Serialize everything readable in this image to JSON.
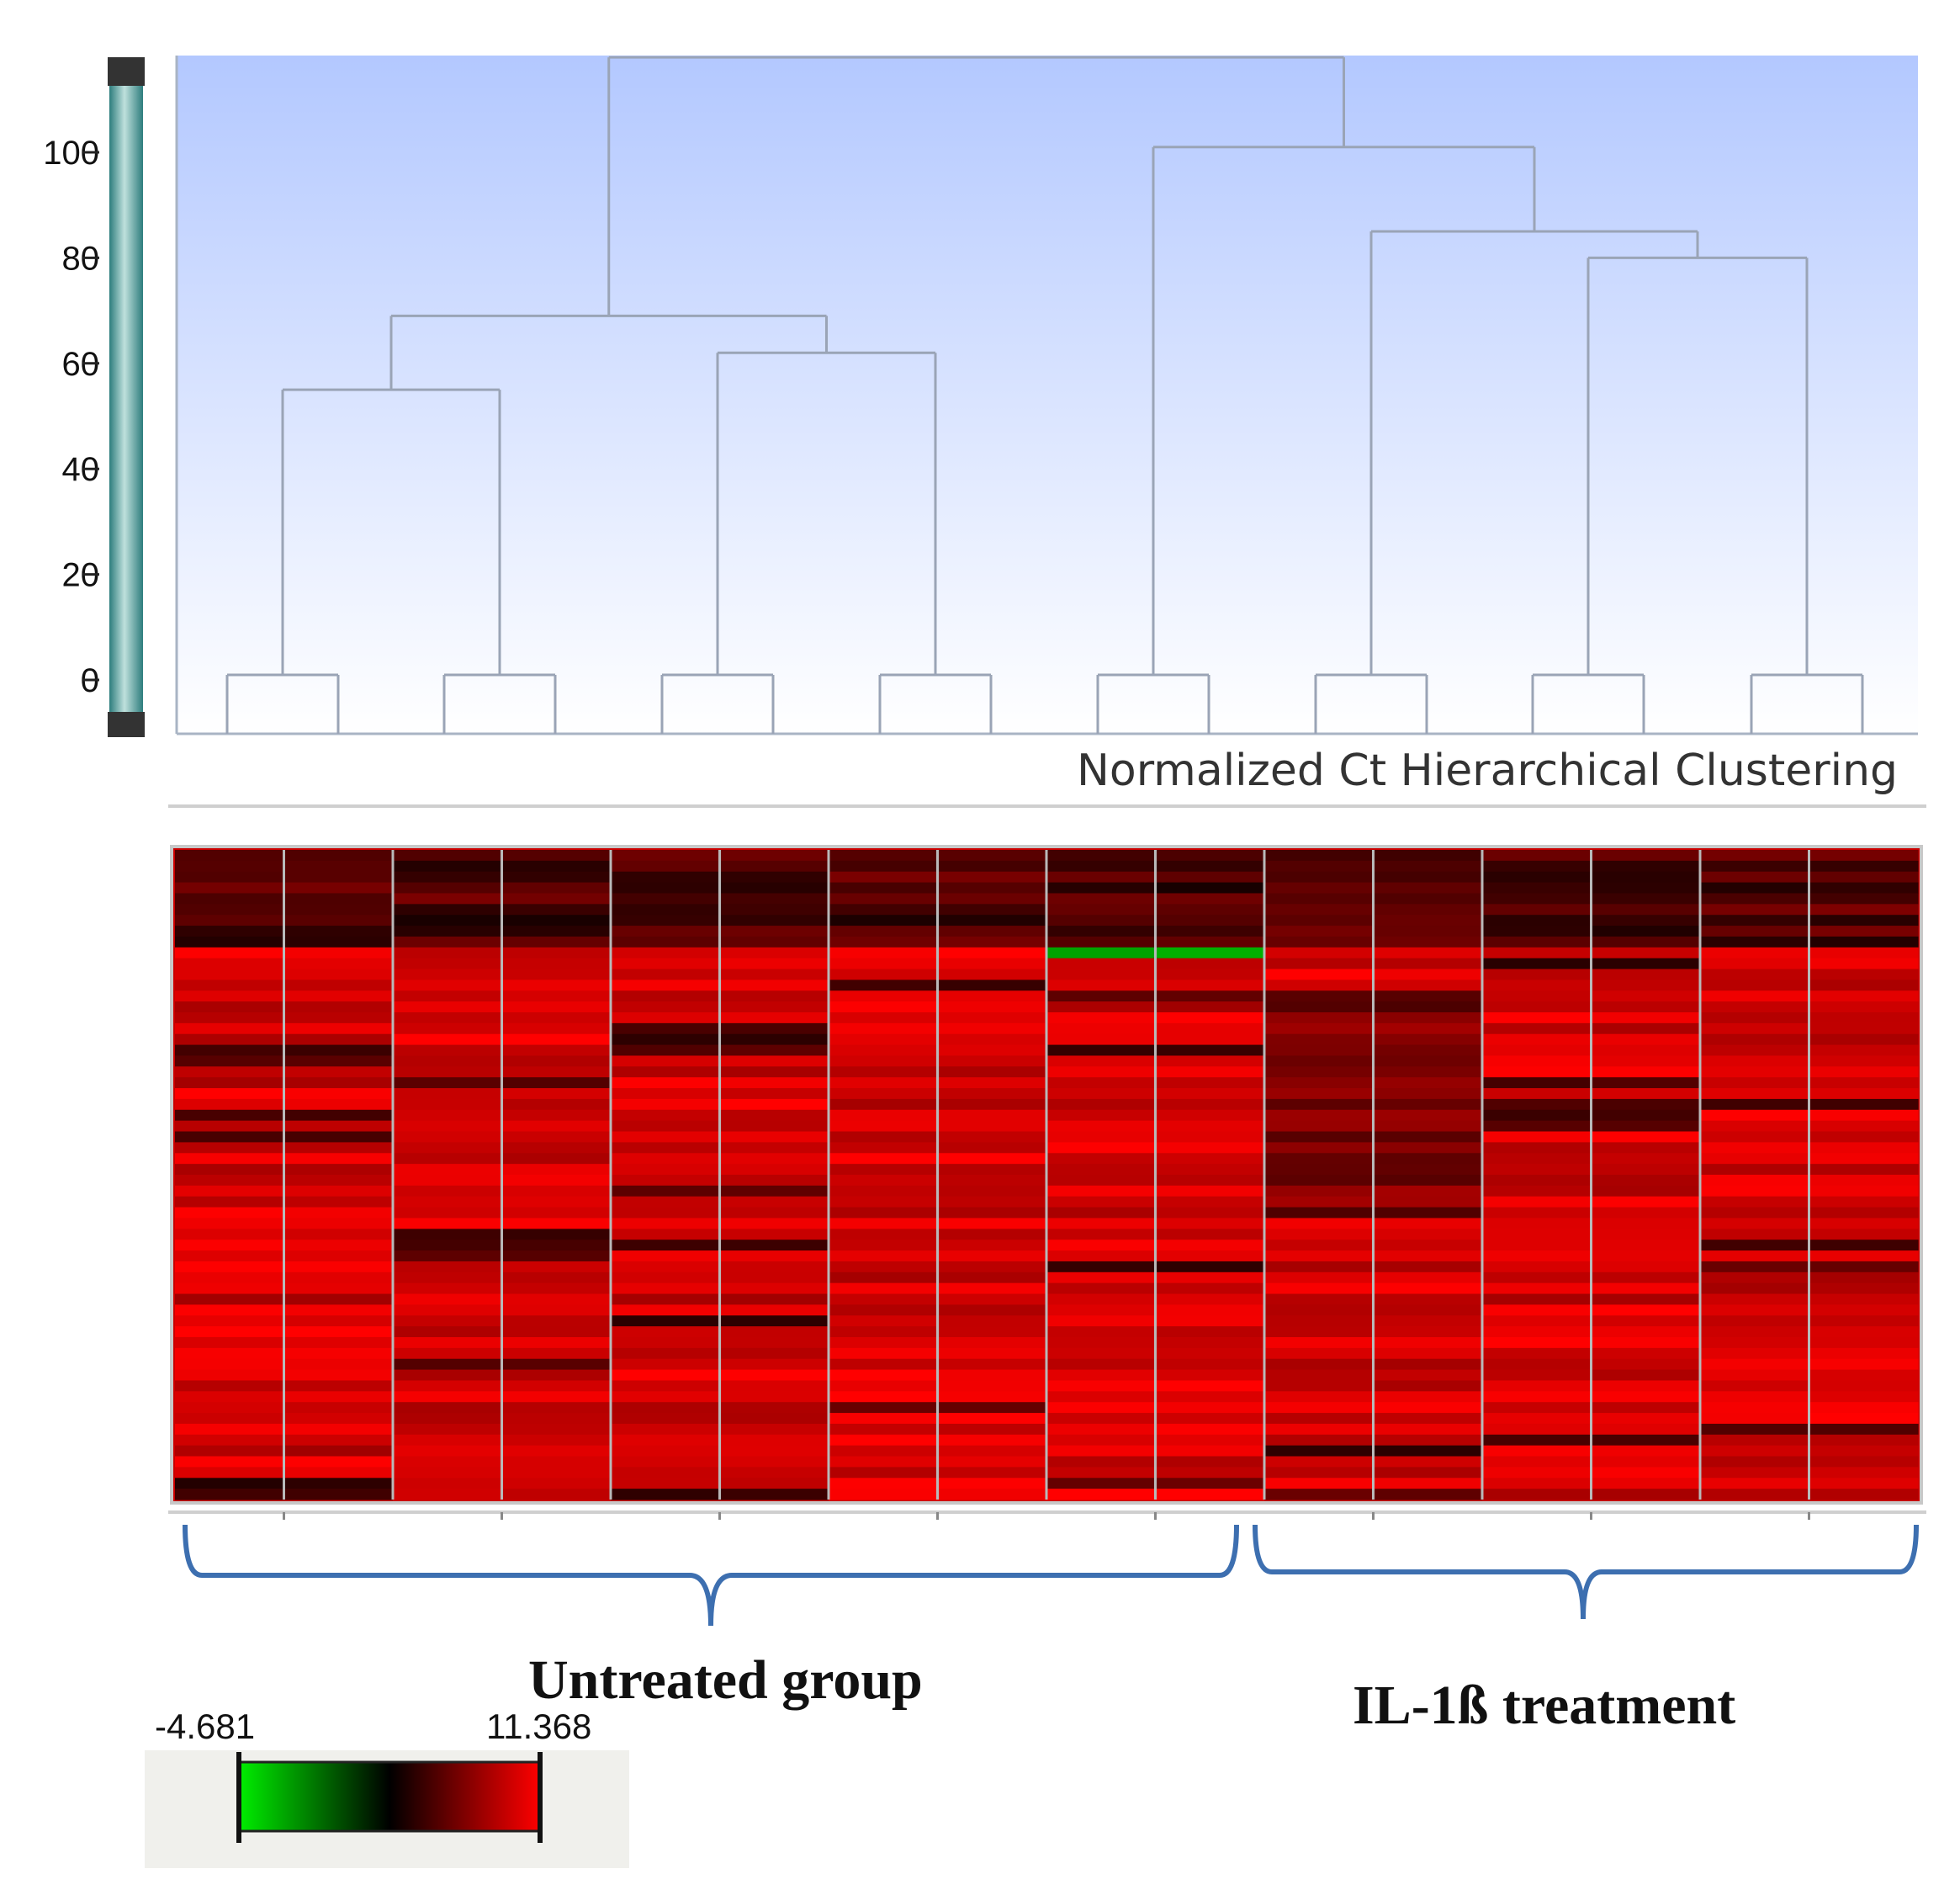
{
  "chart_data": [
    {
      "type": "dendrogram",
      "title": "Normalized Ct Hierarchical Clustering",
      "y_ticks": [
        0,
        20,
        40,
        60,
        80,
        100
      ],
      "leaves": 8,
      "merges": [
        {
          "children": [
            "L1",
            "L2"
          ],
          "height": 55
        },
        {
          "children": [
            "L3",
            "L4"
          ],
          "height": 62
        },
        {
          "children": [
            "M1",
            "M2"
          ],
          "height": 69
        },
        {
          "children": [
            "L7",
            "L8"
          ],
          "height": 80
        },
        {
          "children": [
            "L6",
            "M4"
          ],
          "height": 85
        },
        {
          "children": [
            "L5",
            "M5"
          ],
          "height": 101
        },
        {
          "children": [
            "M3",
            "M6"
          ],
          "height": 118
        }
      ]
    },
    {
      "type": "heatmap",
      "columns": 16,
      "rows": 60,
      "colorscale": {
        "min": "-4.681",
        "max": "11.368",
        "colors": [
          "#00dd00",
          "#000000",
          "#ff0000"
        ]
      },
      "groups": [
        {
          "label": "Untreated group",
          "columns": [
            1,
            10
          ]
        },
        {
          "label": "IL-1ß treatment",
          "columns": [
            11,
            16
          ]
        }
      ]
    }
  ]
}
